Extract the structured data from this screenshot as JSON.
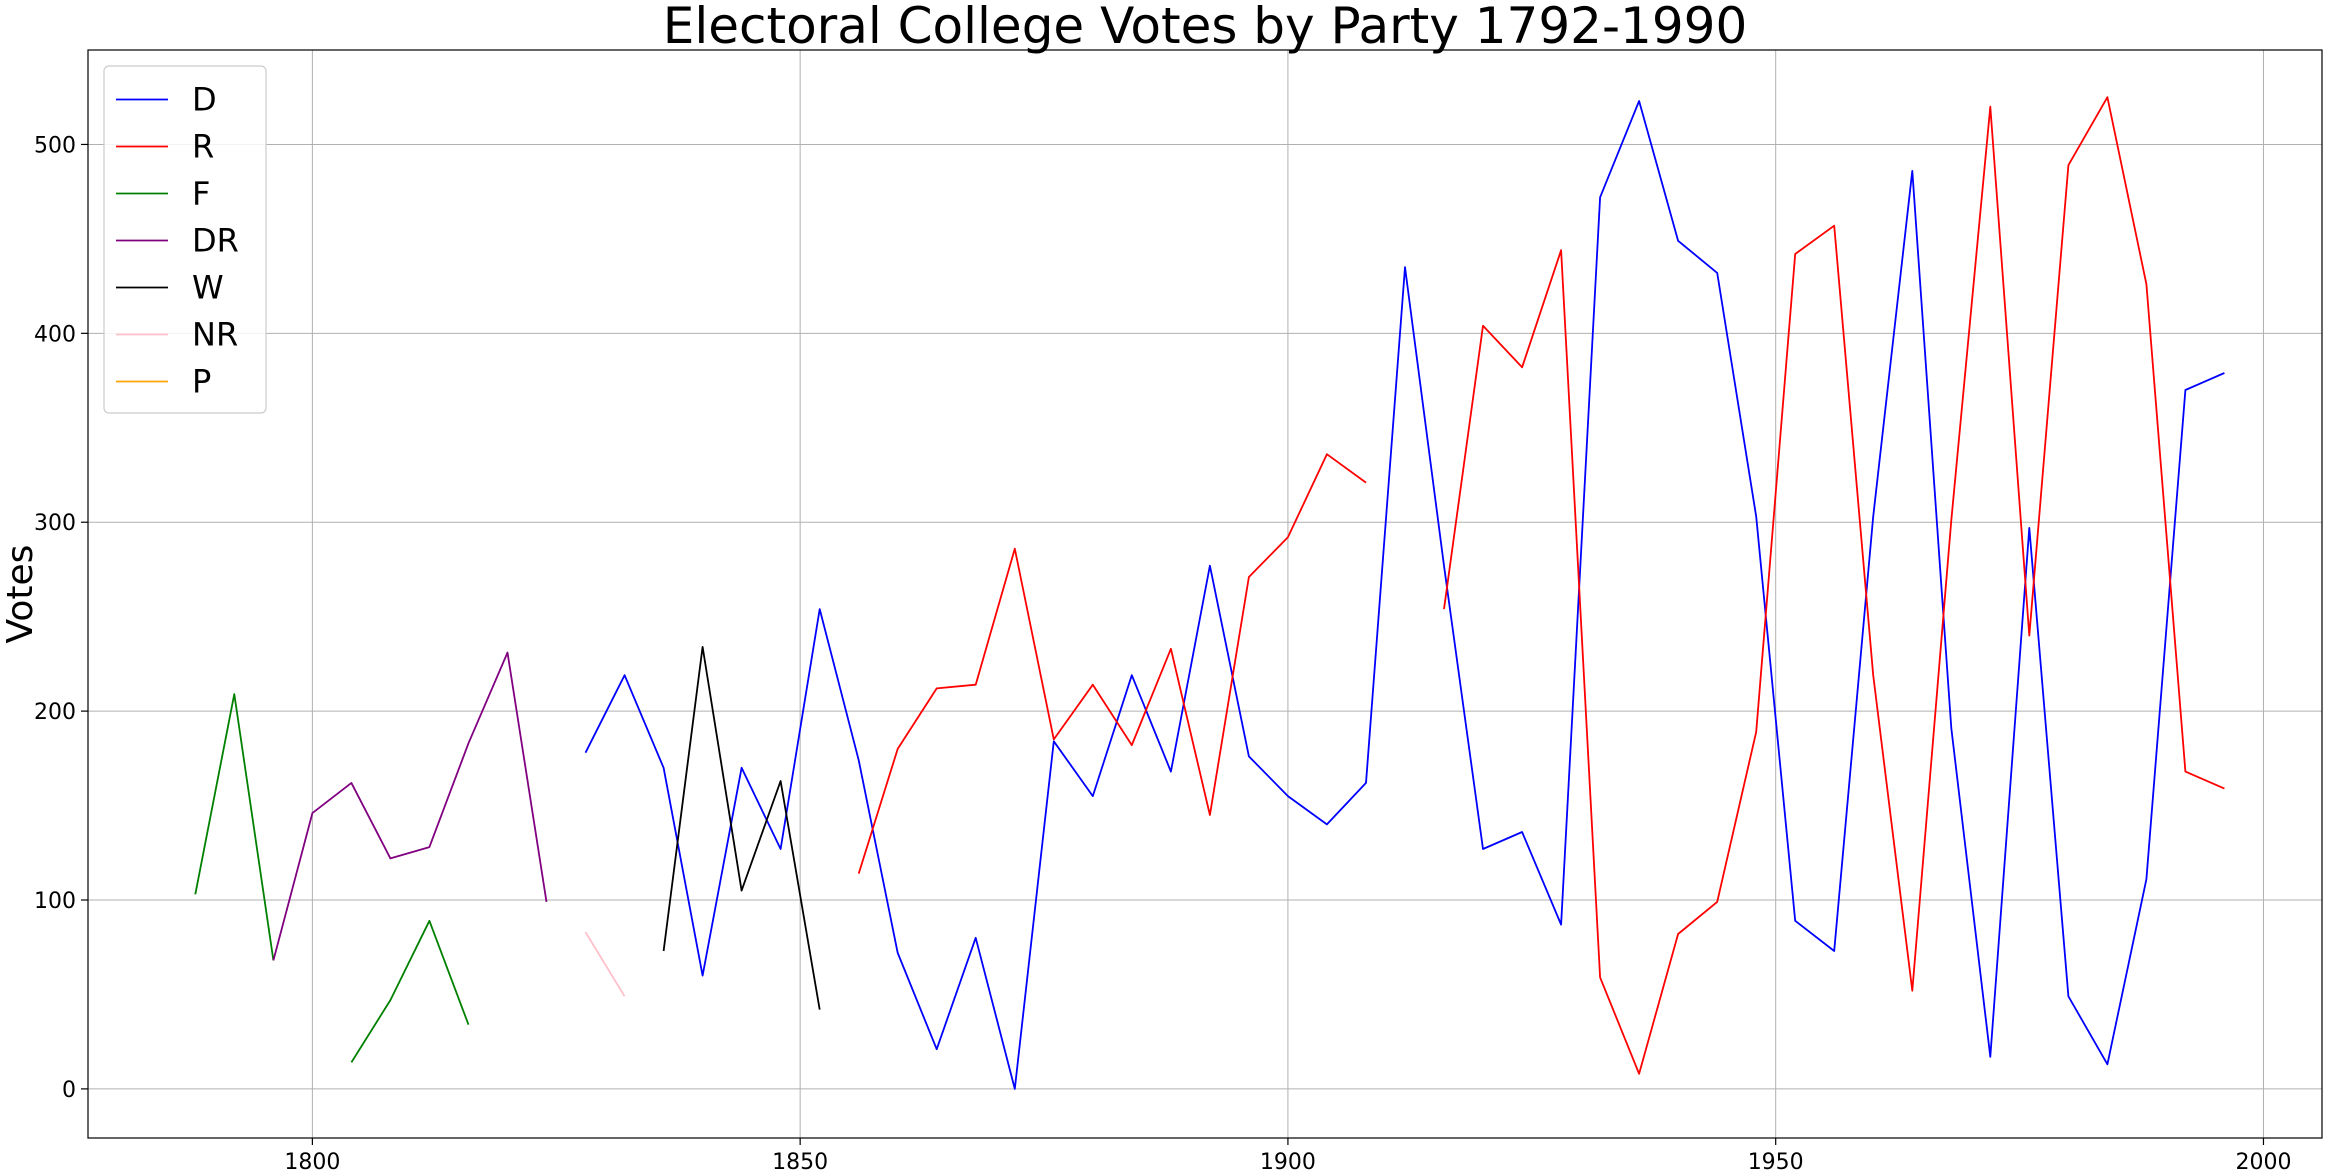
{
  "chart_data": {
    "type": "line",
    "title": "Electoral College Votes by Party 1792-1990",
    "xlabel": "",
    "ylabel": "Votes",
    "xlim": [
      1777,
      2006
    ],
    "ylim": [
      -26,
      550
    ],
    "xticks": [
      1800,
      1850,
      1900,
      1950,
      2000
    ],
    "yticks": [
      0,
      100,
      200,
      300,
      400,
      500
    ],
    "grid": true,
    "legend_position": "upper-left",
    "series": [
      {
        "name": "D",
        "color": "#0000ff",
        "segments": [
          [
            [
              1828,
              178
            ],
            [
              1832,
              219
            ],
            [
              1836,
              170
            ],
            [
              1840,
              60
            ],
            [
              1844,
              170
            ],
            [
              1848,
              127
            ],
            [
              1852,
              254
            ],
            [
              1856,
              174
            ],
            [
              1860,
              72
            ],
            [
              1864,
              21
            ],
            [
              1868,
              80
            ],
            [
              1872,
              0
            ],
            [
              1876,
              184
            ],
            [
              1880,
              155
            ],
            [
              1884,
              219
            ],
            [
              1888,
              168
            ],
            [
              1892,
              277
            ],
            [
              1896,
              176
            ],
            [
              1900,
              155
            ],
            [
              1904,
              140
            ],
            [
              1908,
              162
            ],
            [
              1912,
              435
            ],
            [
              1916,
              277
            ],
            [
              1920,
              127
            ],
            [
              1924,
              136
            ],
            [
              1928,
              87
            ],
            [
              1932,
              472
            ],
            [
              1936,
              523
            ],
            [
              1940,
              449
            ],
            [
              1944,
              432
            ],
            [
              1948,
              303
            ],
            [
              1952,
              89
            ],
            [
              1956,
              73
            ],
            [
              1960,
              303
            ],
            [
              1964,
              486
            ],
            [
              1968,
              191
            ],
            [
              1972,
              17
            ],
            [
              1976,
              297
            ],
            [
              1980,
              49
            ],
            [
              1984,
              13
            ],
            [
              1988,
              111
            ],
            [
              1992,
              370
            ],
            [
              1996,
              379
            ]
          ]
        ]
      },
      {
        "name": "R",
        "color": "#ff0000",
        "segments": [
          [
            [
              1856,
              114
            ],
            [
              1860,
              180
            ],
            [
              1864,
              212
            ],
            [
              1868,
              214
            ],
            [
              1872,
              286
            ],
            [
              1876,
              185
            ],
            [
              1880,
              214
            ],
            [
              1884,
              182
            ],
            [
              1888,
              233
            ],
            [
              1892,
              145
            ],
            [
              1896,
              271
            ],
            [
              1900,
              292
            ],
            [
              1904,
              336
            ],
            [
              1908,
              321
            ]
          ],
          [
            [
              1916,
              254
            ],
            [
              1920,
              404
            ],
            [
              1924,
              382
            ],
            [
              1928,
              444
            ],
            [
              1932,
              59
            ],
            [
              1936,
              8
            ],
            [
              1940,
              82
            ],
            [
              1944,
              99
            ],
            [
              1948,
              189
            ],
            [
              1952,
              442
            ],
            [
              1956,
              457
            ],
            [
              1960,
              219
            ],
            [
              1964,
              52
            ],
            [
              1968,
              301
            ],
            [
              1972,
              520
            ],
            [
              1976,
              240
            ],
            [
              1980,
              489
            ],
            [
              1984,
              525
            ],
            [
              1988,
              426
            ],
            [
              1992,
              168
            ],
            [
              1996,
              159
            ]
          ]
        ]
      },
      {
        "name": "F",
        "color": "#008000",
        "segments": [
          [
            [
              1788,
              103
            ],
            [
              1792,
              209
            ],
            [
              1796,
              68
            ]
          ],
          [
            [
              1804,
              14
            ],
            [
              1808,
              47
            ],
            [
              1812,
              89
            ],
            [
              1816,
              34
            ]
          ]
        ]
      },
      {
        "name": "DR",
        "color": "#800080",
        "segments": [
          [
            [
              1796,
              68
            ],
            [
              1800,
              146
            ],
            [
              1804,
              162
            ],
            [
              1808,
              122
            ],
            [
              1812,
              128
            ],
            [
              1816,
              183
            ],
            [
              1820,
              231
            ],
            [
              1824,
              99
            ]
          ]
        ]
      },
      {
        "name": "W",
        "color": "#000000",
        "segments": [
          [
            [
              1836,
              73
            ],
            [
              1840,
              234
            ],
            [
              1844,
              105
            ],
            [
              1848,
              163
            ],
            [
              1852,
              42
            ]
          ]
        ]
      },
      {
        "name": "NR",
        "color": "#ffc0cb",
        "segments": [
          [
            [
              1828,
              83
            ],
            [
              1832,
              49
            ]
          ]
        ]
      },
      {
        "name": "P",
        "color": "#ffa500",
        "segments": []
      }
    ]
  }
}
